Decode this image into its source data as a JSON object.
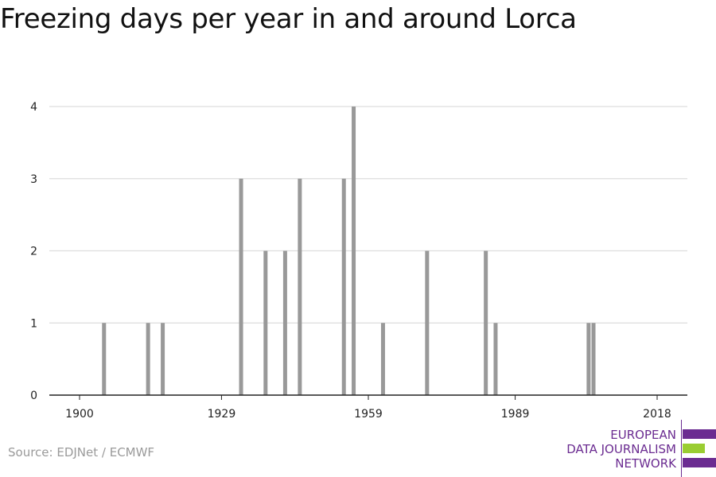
{
  "title": "Freezing days per year in and around Lorca",
  "source": "Source: EDJNet / ECMWF",
  "logo": {
    "lines": [
      "EUROPEAN",
      "DATA JOURNALISM",
      "NETWORK"
    ],
    "text_color": "#6b2c91",
    "bar_colors": [
      "#6b2c91",
      "#9acd32",
      "#6b2c91"
    ]
  },
  "chart_data": {
    "type": "bar",
    "title": "Freezing days per year in and around Lorca",
    "xlabel": "",
    "ylabel": "",
    "xlim": [
      1900,
      2018
    ],
    "ylim": [
      0,
      4
    ],
    "x_ticks": [
      1900,
      1929,
      1959,
      1989,
      2018
    ],
    "y_ticks": [
      0,
      1,
      2,
      3,
      4
    ],
    "grid": true,
    "bar_color": "#999999",
    "x": [
      1905,
      1914,
      1917,
      1933,
      1938,
      1942,
      1945,
      1954,
      1956,
      1962,
      1971,
      1983,
      1985,
      2004,
      2005
    ],
    "values": [
      1,
      1,
      1,
      3,
      2,
      2,
      3,
      3,
      4,
      1,
      2,
      2,
      1,
      1,
      1
    ]
  }
}
